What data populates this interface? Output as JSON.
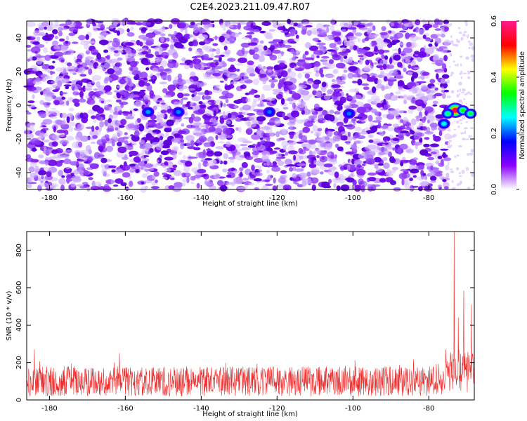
{
  "title": "C2E4.2023.211.09.47.R07",
  "colorbar": {
    "label": "Normalized spectral amplitude",
    "ticks": [
      "0.0",
      "0.2",
      "0.4",
      "0.6"
    ],
    "range": [
      0,
      0.6
    ],
    "colors": [
      "#ffffff",
      "#8a00ff",
      "#0000ff",
      "#00ffff",
      "#00ff00",
      "#ffff00",
      "#ff0000",
      "#ff1a8c"
    ]
  },
  "chart_data": [
    {
      "type": "heatmap",
      "xlabel": "Height of straight line (km)",
      "ylabel": "Frequency (Hz)",
      "xlim": [
        -186,
        -68
      ],
      "ylim": [
        -50,
        50
      ],
      "x_ticks": [
        "-180",
        "-160",
        "-140",
        "-120",
        "-100",
        "-80"
      ],
      "y_ticks": [
        "-40",
        "-20",
        "0",
        "20",
        "40"
      ],
      "background_speckle_amplitude": 0.12,
      "speckle_max_x": -75,
      "hotspots": [
        {
          "x": -73,
          "y": -3,
          "value": 0.55
        },
        {
          "x": -71,
          "y": -3,
          "value": 0.3
        },
        {
          "x": -75,
          "y": -5,
          "value": 0.25
        },
        {
          "x": -76,
          "y": -11,
          "value": 0.2
        },
        {
          "x": -69,
          "y": -5,
          "value": 0.27
        },
        {
          "x": -154,
          "y": -4,
          "value": 0.15
        },
        {
          "x": -146,
          "y": -4,
          "value": 0.14
        },
        {
          "x": -122,
          "y": -4,
          "value": 0.13
        },
        {
          "x": -101,
          "y": -5,
          "value": 0.13
        }
      ]
    },
    {
      "type": "line",
      "xlabel": "Height of straight line (km)",
      "ylabel": "SNR (10 * v/v)",
      "xlim": [
        -186,
        -68
      ],
      "ylim": [
        0,
        900
      ],
      "x_ticks": [
        "-180",
        "-160",
        "-140",
        "-120",
        "-100",
        "-80"
      ],
      "y_ticks": [
        "0",
        "200",
        "400",
        "600",
        "800"
      ],
      "color": "#ee2b2b",
      "noise_floor": [
        20,
        180
      ],
      "peaks": [
        {
          "x": -73.3,
          "y": 900
        },
        {
          "x": -70.8,
          "y": 585
        },
        {
          "x": -72.2,
          "y": 440
        },
        {
          "x": -68.8,
          "y": 510
        },
        {
          "x": -75.5,
          "y": 270
        },
        {
          "x": -184.0,
          "y": 270
        },
        {
          "x": -161.5,
          "y": 250
        }
      ]
    }
  ]
}
